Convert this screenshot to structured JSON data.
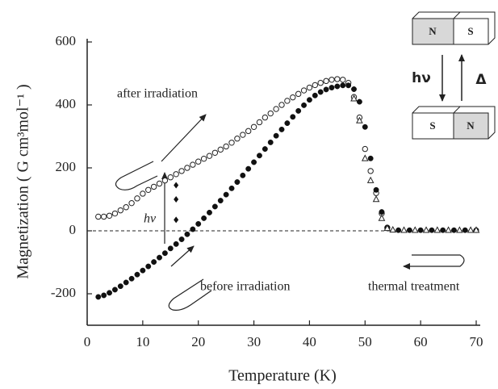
{
  "chart_data": {
    "type": "scatter",
    "x_label": "Temperature (K)",
    "y_label": "Magnetization ( G cm³mol⁻¹ )",
    "xlim": [
      0,
      70
    ],
    "ylim": [
      -300,
      600
    ],
    "xticks": [
      0,
      10,
      20,
      30,
      40,
      50,
      60,
      70
    ],
    "yticks": [
      -200,
      0,
      200,
      400,
      600
    ],
    "zero_line": "dashed",
    "series": [
      {
        "marker": "open-circle",
        "color": "#222",
        "x": [
          2,
          3,
          4,
          5,
          6,
          7,
          8,
          9,
          10,
          11,
          12,
          13,
          14,
          15,
          16,
          17,
          18,
          19,
          20,
          21,
          22,
          23,
          24,
          25,
          26,
          27,
          28,
          29,
          30,
          31,
          32,
          33,
          34,
          35,
          36,
          37,
          38,
          39,
          40,
          41,
          42,
          43,
          44,
          45,
          46,
          47,
          48,
          49,
          50,
          51,
          52,
          53,
          54
        ],
        "values": [
          45,
          45,
          48,
          55,
          65,
          75,
          88,
          103,
          118,
          130,
          140,
          150,
          160,
          170,
          180,
          190,
          200,
          210,
          220,
          229,
          238,
          248,
          258,
          268,
          280,
          293,
          305,
          317,
          330,
          345,
          360,
          373,
          387,
          400,
          413,
          424,
          435,
          446,
          455,
          463,
          470,
          476,
          480,
          482,
          480,
          470,
          425,
          360,
          260,
          190,
          120,
          55,
          10
        ]
      },
      {
        "marker": "filled-circle",
        "color": "#111",
        "x": [
          2,
          3,
          4,
          5,
          6,
          7,
          8,
          9,
          10,
          11,
          12,
          13,
          14,
          15,
          16,
          17,
          18,
          19,
          20,
          21,
          22,
          23,
          24,
          25,
          26,
          27,
          28,
          29,
          30,
          31,
          32,
          33,
          34,
          35,
          36,
          37,
          38,
          39,
          40,
          41,
          42,
          43,
          44,
          45,
          46,
          47,
          48,
          49,
          50,
          51,
          52,
          53,
          54,
          56,
          58,
          60,
          62,
          64,
          66,
          68,
          70
        ],
        "values": [
          -210,
          -205,
          -197,
          -187,
          -176,
          -164,
          -152,
          -139,
          -126,
          -113,
          -99,
          -85,
          -71,
          -56,
          -42,
          -27,
          -11,
          5,
          22,
          40,
          58,
          77,
          96,
          115,
          135,
          155,
          176,
          197,
          218,
          239,
          260,
          281,
          302,
          322,
          342,
          362,
          381,
          399,
          416,
          430,
          441,
          449,
          455,
          459,
          462,
          462,
          450,
          410,
          330,
          230,
          130,
          60,
          10,
          2,
          2,
          2,
          2,
          2,
          2,
          2,
          2
        ]
      },
      {
        "marker": "open-triangle",
        "color": "#222",
        "x": [
          48,
          49,
          50,
          51,
          52,
          53,
          54,
          55,
          57,
          59,
          61,
          63,
          65,
          67,
          69,
          70
        ],
        "values": [
          420,
          350,
          230,
          160,
          100,
          40,
          8,
          3,
          2,
          2,
          2,
          2,
          2,
          2,
          2,
          2
        ]
      },
      {
        "marker": "filled-diamond",
        "color": "#111",
        "x": [
          16,
          16,
          16
        ],
        "values": [
          145,
          100,
          35
        ]
      }
    ],
    "annotations": [
      "after irradiation",
      "before irradiation",
      "thermal treatment",
      "hν"
    ],
    "inset": {
      "top": [
        "N",
        "S"
      ],
      "bottom": [
        "S",
        "N"
      ],
      "down_label": "hν",
      "up_label": "Δ"
    }
  }
}
